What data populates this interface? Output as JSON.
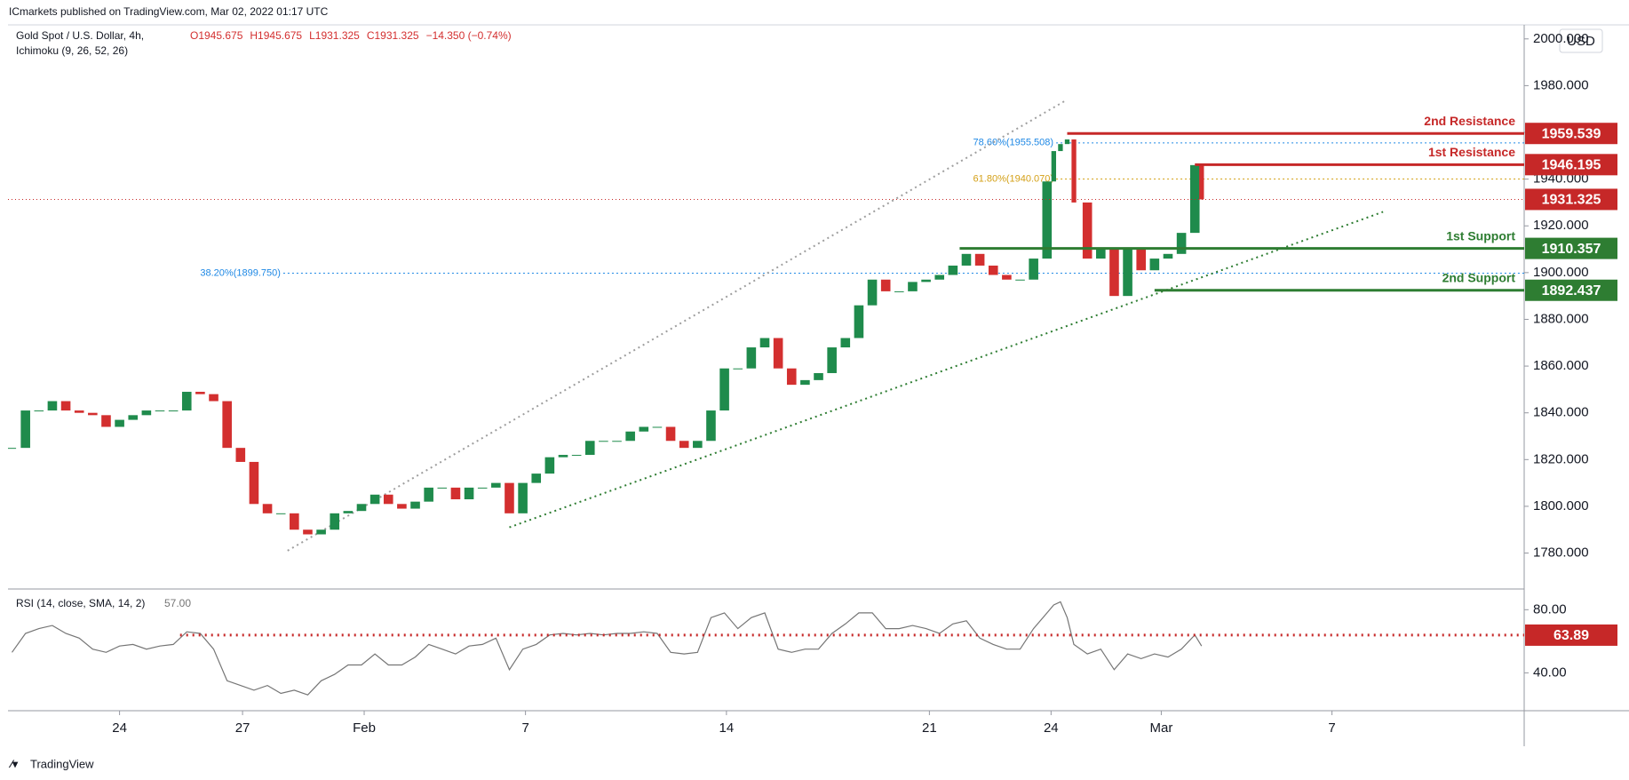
{
  "header": {
    "publisher": "ICmarkets published on TradingView.com, Mar 02, 2022 01:17 UTC",
    "currency": "USD",
    "footer": "TradingView"
  },
  "chart_data": [
    {
      "type": "candlestick",
      "title": "Gold Spot / U.S. Dollar, 4h,",
      "indicator": "Ichimoku (9, 26, 52, 26)",
      "ohlc": [
        "O1945.675",
        "H1945.675",
        "L1931.325",
        "C1931.325",
        "−14.350 (−0.74%)"
      ],
      "up_color": "#1f8b4c",
      "down_color": "#d32f2f",
      "x": [
        0,
        2,
        4,
        6,
        8,
        10,
        12,
        14,
        16,
        18,
        20,
        22,
        24,
        26,
        28,
        30,
        32,
        34,
        36,
        38,
        40,
        42,
        44,
        46,
        48,
        50,
        52,
        54,
        56,
        58,
        60,
        62,
        64,
        66,
        68,
        70,
        72,
        74,
        76,
        78,
        80,
        82,
        84,
        86,
        88,
        90,
        92,
        94,
        96,
        98,
        100,
        102,
        104,
        106,
        108,
        110,
        112,
        114,
        116,
        118,
        120,
        122,
        124,
        126,
        128,
        130,
        132,
        134,
        136,
        138,
        140,
        142,
        144,
        146,
        148,
        150,
        152,
        154,
        155,
        156,
        157,
        158,
        160,
        162,
        164,
        166,
        168,
        170,
        172,
        174,
        176,
        177
      ],
      "values": [
        1825,
        1841,
        1841,
        1845,
        1841,
        1840,
        1839,
        1834,
        1837,
        1839,
        1841,
        1841,
        1841,
        1849,
        1848,
        1845,
        1825,
        1819,
        1801,
        1797,
        1797,
        1790,
        1788,
        1790,
        1797,
        1798,
        1801,
        1805,
        1801,
        1799,
        1802,
        1808,
        1808,
        1803,
        1808,
        1808,
        1810,
        1797,
        1810,
        1814,
        1821,
        1822,
        1822,
        1828,
        1828,
        1828,
        1832,
        1834,
        1834,
        1828,
        1825,
        1828,
        1841,
        1859,
        1859,
        1868,
        1872,
        1859,
        1852,
        1854,
        1857,
        1868,
        1872,
        1886,
        1897,
        1892,
        1892,
        1896,
        1897,
        1899,
        1903,
        1908,
        1903,
        1899,
        1897,
        1897,
        1906,
        1939,
        1952,
        1955,
        1957,
        1930,
        1906,
        1910,
        1890,
        1910,
        1901,
        1906,
        1908,
        1917,
        1946,
        1931.325
      ],
      "xlim": [
        -0.6,
        225
      ],
      "ylim": [
        1765,
        2006
      ],
      "xticks": [
        {
          "value": 16,
          "label": "24"
        },
        {
          "value": 34.3,
          "label": "27"
        },
        {
          "value": 52.4,
          "label": "Feb"
        },
        {
          "value": 76.4,
          "label": "7"
        },
        {
          "value": 106.3,
          "label": "14"
        },
        {
          "value": 136.5,
          "label": "21"
        },
        {
          "value": 154.6,
          "label": "24"
        },
        {
          "value": 171,
          "label": "Mar"
        },
        {
          "value": 196.4,
          "label": "7"
        }
      ],
      "yticks": [
        {
          "value": 1780,
          "label": "1780.000"
        },
        {
          "value": 1800,
          "label": "1800.000"
        },
        {
          "value": 1820,
          "label": "1820.000"
        },
        {
          "value": 1840,
          "label": "1840.000"
        },
        {
          "value": 1860,
          "label": "1860.000"
        },
        {
          "value": 1880,
          "label": "1880.000"
        },
        {
          "value": 1900,
          "label": "1900.000"
        },
        {
          "value": 1920,
          "label": "1920.000"
        },
        {
          "value": 1940,
          "label": "1940.000"
        },
        {
          "value": 1960,
          "label": "1960.000"
        },
        {
          "value": 1980,
          "label": "1980.000"
        },
        {
          "value": 2000,
          "label": "2000.000"
        }
      ],
      "levels": [
        {
          "name": "2nd Resistance",
          "value": 1959.539,
          "color": "#c62828",
          "from": 157
        },
        {
          "name": "1st Resistance",
          "value": 1946.195,
          "color": "#c62828",
          "from": 176
        },
        {
          "value": 1931.325,
          "color": "#c62828",
          "from": -0.6,
          "style": "dotted"
        },
        {
          "name": "1st Support",
          "value": 1910.357,
          "color": "#2e7d32",
          "from": 141
        },
        {
          "name": "2nd Support",
          "value": 1892.437,
          "color": "#2e7d32",
          "from": 170
        }
      ],
      "fibs": [
        {
          "text": "78.60%(1955.508)",
          "value": 1955.508,
          "color": "#1e88e5",
          "at": 143
        },
        {
          "text": "61.80%(1940.070)",
          "value": 1940.07,
          "color": "#d4a017",
          "at": 143
        },
        {
          "text": "38.20%(1899.750)",
          "value": 1899.75,
          "color": "#1e88e5",
          "at": 28
        }
      ],
      "trendlines": [
        {
          "points": [
            [
              74,
              1791
            ],
            [
              204,
              1926
            ]
          ],
          "color": "#2e7d32"
        },
        {
          "points": [
            [
              41,
              1781
            ],
            [
              157,
              1974
            ]
          ],
          "color": "#9e9e9e"
        }
      ]
    },
    {
      "type": "line",
      "title": "RSI (14, close, SMA, 14, 2)",
      "legend_value": "57.00",
      "color": "#757575",
      "x": [
        0,
        2,
        4,
        6,
        8,
        10,
        12,
        14,
        16,
        18,
        20,
        22,
        24,
        26,
        28,
        30,
        32,
        34,
        36,
        38,
        40,
        42,
        44,
        46,
        48,
        50,
        52,
        54,
        56,
        58,
        60,
        62,
        64,
        66,
        68,
        70,
        72,
        74,
        76,
        78,
        80,
        82,
        84,
        86,
        88,
        90,
        92,
        94,
        96,
        98,
        100,
        102,
        104,
        106,
        108,
        110,
        112,
        114,
        116,
        118,
        120,
        122,
        124,
        126,
        128,
        130,
        132,
        134,
        136,
        138,
        140,
        142,
        144,
        146,
        148,
        150,
        152,
        154,
        155,
        156,
        157,
        158,
        160,
        162,
        164,
        166,
        168,
        170,
        172,
        174,
        176,
        177
      ],
      "values": [
        53,
        65,
        68,
        70,
        65,
        62,
        55,
        53,
        57,
        58,
        55,
        57,
        58,
        66,
        65,
        55,
        35,
        32,
        29,
        32,
        27,
        29,
        26,
        35,
        39,
        45,
        45,
        52,
        45,
        45,
        50,
        58,
        55,
        52,
        57,
        58,
        62,
        42,
        55,
        58,
        64,
        65,
        64,
        65,
        64,
        65,
        65,
        66,
        65,
        53,
        52,
        53,
        75,
        78,
        68,
        75,
        78,
        55,
        53,
        55,
        55,
        65,
        71,
        78,
        78,
        68,
        68,
        70,
        68,
        65,
        71,
        73,
        62,
        58,
        55,
        55,
        68,
        78,
        83,
        85,
        75,
        58,
        52,
        55,
        42,
        52,
        49,
        52,
        50,
        55,
        64,
        57
      ],
      "xlim": [
        -0.6,
        225
      ],
      "ylim": [
        16,
        92
      ],
      "yticks": [
        {
          "value": 40,
          "label": "40.00"
        },
        {
          "value": 80,
          "label": "80.00"
        }
      ],
      "levels": [
        {
          "value": 63.89,
          "color": "#c62828",
          "from": 25,
          "style": "dotted"
        }
      ]
    }
  ]
}
